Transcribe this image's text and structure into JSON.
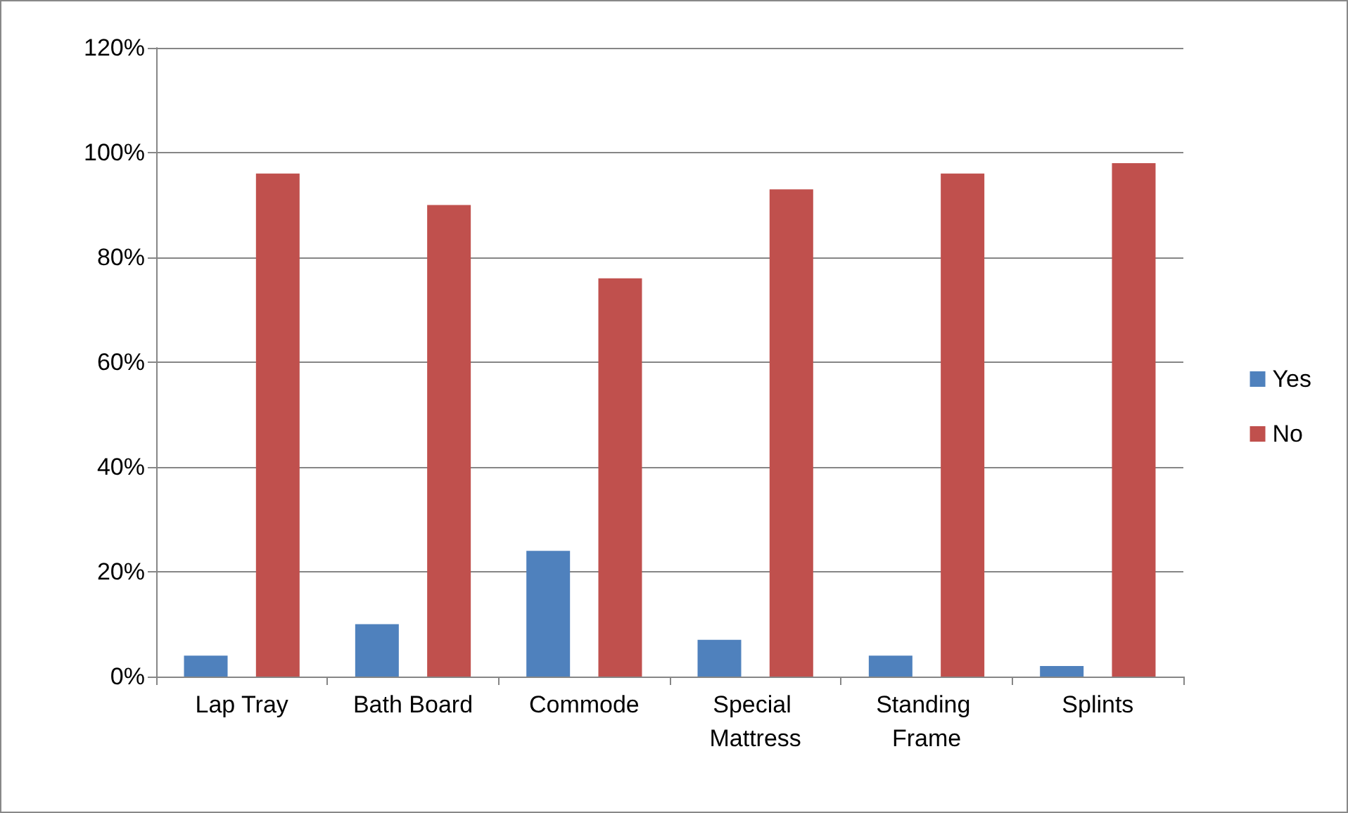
{
  "chart_data": {
    "type": "bar",
    "categories": [
      "Lap Tray",
      "Bath Board",
      "Commode",
      "Special Mattress",
      "Standing Frame",
      "Splints"
    ],
    "series": [
      {
        "name": "Yes",
        "color": "#4f81bd",
        "values": [
          4,
          10,
          24,
          7,
          4,
          2
        ]
      },
      {
        "name": "No",
        "color": "#c0504d",
        "values": [
          96,
          90,
          76,
          93,
          96,
          98
        ]
      }
    ],
    "ylim": [
      0,
      120
    ],
    "yticks": [
      {
        "value": 0,
        "label": "0%"
      },
      {
        "value": 20,
        "label": "20%"
      },
      {
        "value": 40,
        "label": "40%"
      },
      {
        "value": 60,
        "label": "60%"
      },
      {
        "value": 80,
        "label": "80%"
      },
      {
        "value": 100,
        "label": "100%"
      },
      {
        "value": 120,
        "label": "120%"
      }
    ],
    "grid": "y",
    "legend": "right"
  }
}
